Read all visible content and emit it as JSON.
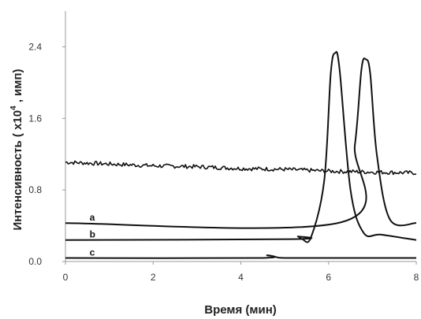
{
  "chart_data": {
    "type": "line",
    "title": "",
    "xlabel": "Время (мин)",
    "ylabel_main": "Интенсивность ( x10",
    "ylabel_sup": "4",
    "ylabel_tail": " , имп)",
    "xlim": [
      0,
      8
    ],
    "ylim": [
      0,
      2.8
    ],
    "x_ticks": [
      0,
      2,
      4,
      6,
      8
    ],
    "x_tick_labels": [
      "0",
      "2",
      "4",
      "6",
      "8"
    ],
    "y_ticks": [
      0.0,
      0.8,
      1.6,
      2.4
    ],
    "y_tick_labels": [
      "0.0",
      "0.8",
      "1.6",
      "2.4"
    ],
    "grid": false,
    "legend": "none",
    "line_color": "#111111",
    "series": [
      {
        "label": "",
        "kind": "noisy_baseline",
        "x": [
          0,
          1,
          2,
          3,
          4,
          5,
          6,
          7,
          8
        ],
        "y": [
          1.11,
          1.09,
          1.07,
          1.06,
          1.04,
          1.03,
          1.01,
          1.0,
          0.99
        ]
      },
      {
        "label": "a",
        "kind": "peak",
        "baseline": 0.43,
        "peak_x": 6.85,
        "peak_y": 2.26,
        "x": [
          0,
          6.3,
          6.6,
          6.75,
          6.85,
          6.95,
          7.1,
          7.4,
          8
        ],
        "y": [
          0.43,
          0.44,
          1.3,
          2.15,
          2.26,
          2.1,
          1.2,
          0.47,
          0.43
        ]
      },
      {
        "label": "b",
        "kind": "peak",
        "baseline": 0.24,
        "peak_x": 6.15,
        "peak_y": 2.33,
        "x": [
          0,
          5.2,
          5.3,
          5.4,
          5.6,
          5.9,
          6.05,
          6.15,
          6.25,
          6.5,
          6.8,
          7.2,
          8
        ],
        "y": [
          0.24,
          0.25,
          0.28,
          0.25,
          0.27,
          0.9,
          2.1,
          2.33,
          2.15,
          0.8,
          0.32,
          0.3,
          0.24
        ]
      },
      {
        "label": "c",
        "kind": "flat",
        "baseline": 0.04,
        "x": [
          0,
          4.4,
          4.6,
          4.8,
          5.0,
          6.0,
          8
        ],
        "y": [
          0.04,
          0.04,
          0.07,
          0.05,
          0.04,
          0.04,
          0.04
        ]
      }
    ]
  }
}
